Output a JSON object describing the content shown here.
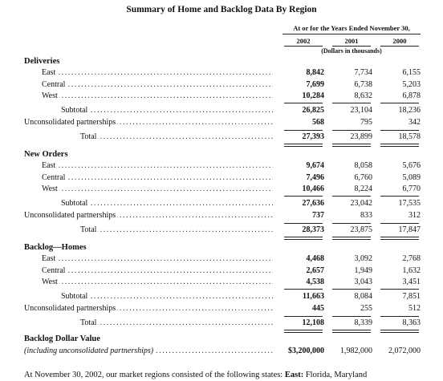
{
  "title": "Summary of Home and Backlog Data By Region",
  "header": {
    "period": "At or for the Years Ended November 30,",
    "years": [
      "2002",
      "2001",
      "2000"
    ],
    "units": "(Dollars in thousands)"
  },
  "sections": [
    {
      "name": "Deliveries",
      "rows": [
        {
          "label": "East",
          "v": [
            "8,842",
            "7,734",
            "6,155"
          ]
        },
        {
          "label": "Central",
          "v": [
            "7,699",
            "6,738",
            "5,203"
          ]
        },
        {
          "label": "West",
          "v": [
            "10,284",
            "8,632",
            "6,878"
          ]
        }
      ],
      "subtotal": {
        "label": "Subtotal",
        "v": [
          "26,825",
          "23,104",
          "18,236"
        ]
      },
      "partnerships": {
        "label": "Unconsolidated partnerships",
        "v": [
          "568",
          "795",
          "342"
        ]
      },
      "total": {
        "label": "Total",
        "v": [
          "27,393",
          "23,899",
          "18,578"
        ]
      }
    },
    {
      "name": "New Orders",
      "rows": [
        {
          "label": "East",
          "v": [
            "9,674",
            "8,058",
            "5,676"
          ]
        },
        {
          "label": "Central",
          "v": [
            "7,496",
            "6,760",
            "5,089"
          ]
        },
        {
          "label": "West",
          "v": [
            "10,466",
            "8,224",
            "6,770"
          ]
        }
      ],
      "subtotal": {
        "label": "Subtotal",
        "v": [
          "27,636",
          "23,042",
          "17,535"
        ]
      },
      "partnerships": {
        "label": "Unconsolidated partnerships",
        "v": [
          "737",
          "833",
          "312"
        ]
      },
      "total": {
        "label": "Total",
        "v": [
          "28,373",
          "23,875",
          "17,847"
        ]
      }
    },
    {
      "name": "Backlog—Homes",
      "rows": [
        {
          "label": "East",
          "v": [
            "4,468",
            "3,092",
            "2,768"
          ]
        },
        {
          "label": "Central",
          "v": [
            "2,657",
            "1,949",
            "1,632"
          ]
        },
        {
          "label": "West",
          "v": [
            "4,538",
            "3,043",
            "3,451"
          ]
        }
      ],
      "subtotal": {
        "label": "Subtotal",
        "v": [
          "11,663",
          "8,084",
          "7,851"
        ]
      },
      "partnerships": {
        "label": "Unconsolidated partnerships",
        "v": [
          "445",
          "255",
          "512"
        ]
      },
      "total": {
        "label": "Total",
        "v": [
          "12,108",
          "8,339",
          "8,363"
        ]
      }
    }
  ],
  "backlog_value": {
    "name": "Backlog Dollar Value",
    "label": "(including unconsolidated partnerships)",
    "v": [
      "$3,200,000",
      "1,982,000",
      "2,072,000"
    ]
  },
  "footer": {
    "lead": "At November 30, 2002, our market regions consisted of the following states: ",
    "bold": "East:",
    "rest": " Florida, Maryland"
  }
}
